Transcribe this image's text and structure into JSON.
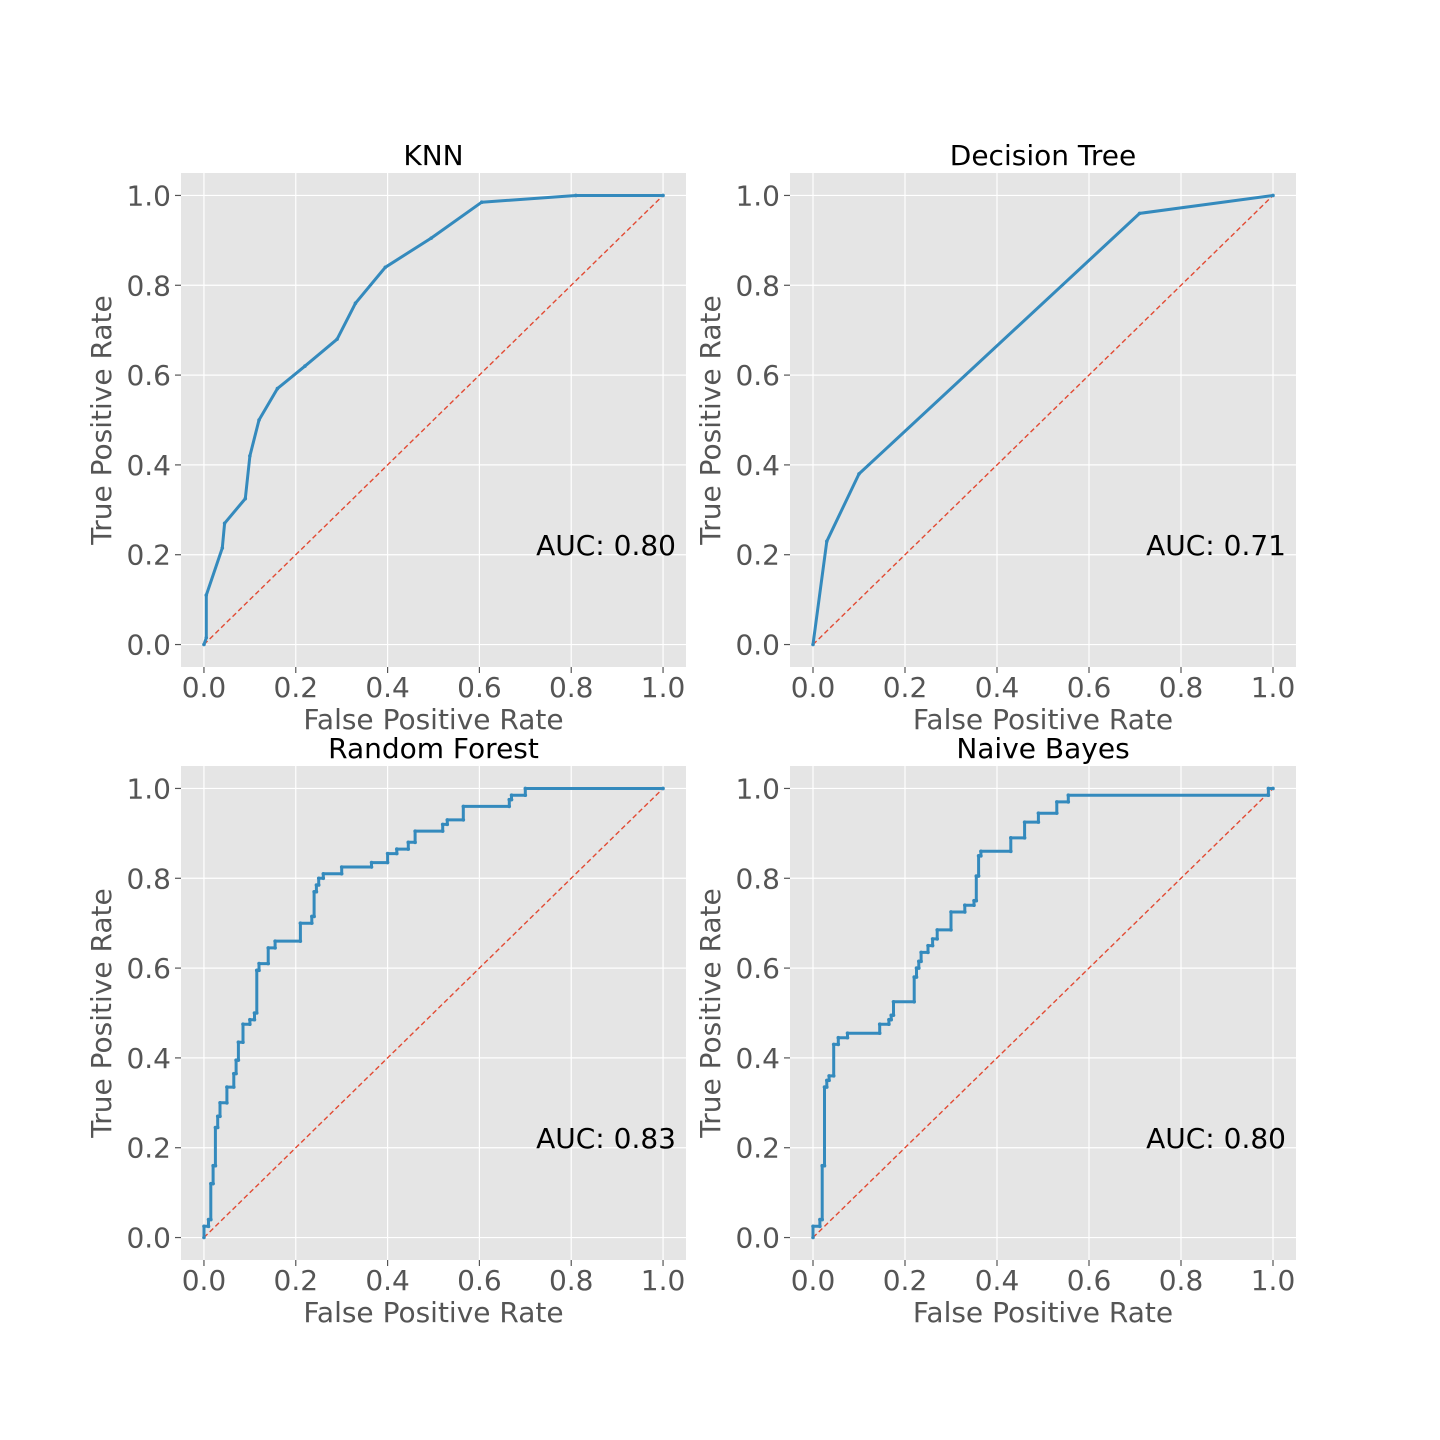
{
  "chart_data": [
    {
      "type": "line",
      "title": "KNN",
      "xlabel": "False Positive Rate",
      "ylabel": "True Positive Rate",
      "xlim": [
        -0.05,
        1.05
      ],
      "ylim": [
        -0.05,
        1.05
      ],
      "xticks": [
        "0.0",
        "0.2",
        "0.4",
        "0.6",
        "0.8",
        "1.0"
      ],
      "yticks": [
        "0.0",
        "0.2",
        "0.4",
        "0.6",
        "0.8",
        "1.0"
      ],
      "grid": true,
      "annotation": "AUC: 0.80",
      "series": [
        {
          "x": [
            0.0,
            0.005,
            0.005,
            0.04,
            0.045,
            0.09,
            0.1,
            0.12,
            0.16,
            0.22,
            0.29,
            0.33,
            0.395,
            0.495,
            0.605,
            0.81,
            1.0
          ],
          "y": [
            0.0,
            0.015,
            0.11,
            0.215,
            0.27,
            0.325,
            0.42,
            0.5,
            0.57,
            0.62,
            0.68,
            0.76,
            0.84,
            0.905,
            0.985,
            1.0,
            1.0
          ]
        },
        {
          "x": [
            0.0,
            1.0
          ],
          "y": [
            0.0,
            1.0
          ]
        }
      ]
    },
    {
      "type": "line",
      "title": "Decision Tree",
      "xlabel": "False Positive Rate",
      "ylabel": "True Positive Rate",
      "xlim": [
        -0.05,
        1.05
      ],
      "ylim": [
        -0.05,
        1.05
      ],
      "xticks": [
        "0.0",
        "0.2",
        "0.4",
        "0.6",
        "0.8",
        "1.0"
      ],
      "yticks": [
        "0.0",
        "0.2",
        "0.4",
        "0.6",
        "0.8",
        "1.0"
      ],
      "grid": true,
      "annotation": "AUC: 0.71",
      "series": [
        {
          "x": [
            0.0,
            0.03,
            0.1,
            0.71,
            1.0
          ],
          "y": [
            0.0,
            0.23,
            0.38,
            0.96,
            1.0
          ]
        },
        {
          "x": [
            0.0,
            1.0
          ],
          "y": [
            0.0,
            1.0
          ]
        }
      ]
    },
    {
      "type": "line",
      "title": "Random Forest",
      "xlabel": "False Positive Rate",
      "ylabel": "True Positive Rate",
      "xlim": [
        -0.05,
        1.05
      ],
      "ylim": [
        -0.05,
        1.05
      ],
      "xticks": [
        "0.0",
        "0.2",
        "0.4",
        "0.6",
        "0.8",
        "1.0"
      ],
      "yticks": [
        "0.0",
        "0.2",
        "0.4",
        "0.6",
        "0.8",
        "1.0"
      ],
      "grid": true,
      "annotation": "AUC: 0.83",
      "series": [
        {
          "x": [
            0.0,
            0.0,
            0.01,
            0.01,
            0.015,
            0.015,
            0.02,
            0.02,
            0.025,
            0.025,
            0.03,
            0.03,
            0.035,
            0.035,
            0.05,
            0.05,
            0.065,
            0.065,
            0.07,
            0.07,
            0.075,
            0.075,
            0.085,
            0.085,
            0.1,
            0.1,
            0.11,
            0.11,
            0.115,
            0.115,
            0.12,
            0.12,
            0.14,
            0.14,
            0.155,
            0.155,
            0.21,
            0.21,
            0.235,
            0.235,
            0.24,
            0.24,
            0.245,
            0.245,
            0.25,
            0.25,
            0.26,
            0.26,
            0.3,
            0.3,
            0.365,
            0.365,
            0.4,
            0.4,
            0.42,
            0.42,
            0.445,
            0.445,
            0.46,
            0.46,
            0.52,
            0.52,
            0.53,
            0.53,
            0.565,
            0.565,
            0.665,
            0.665,
            0.67,
            0.67,
            0.7,
            0.7,
            1.0
          ],
          "y": [
            0.0,
            0.025,
            0.025,
            0.04,
            0.04,
            0.12,
            0.12,
            0.16,
            0.16,
            0.245,
            0.245,
            0.27,
            0.27,
            0.3,
            0.3,
            0.335,
            0.335,
            0.365,
            0.365,
            0.395,
            0.395,
            0.435,
            0.435,
            0.475,
            0.475,
            0.485,
            0.485,
            0.5,
            0.5,
            0.595,
            0.595,
            0.61,
            0.61,
            0.645,
            0.645,
            0.66,
            0.66,
            0.7,
            0.7,
            0.715,
            0.715,
            0.77,
            0.77,
            0.785,
            0.785,
            0.8,
            0.8,
            0.81,
            0.81,
            0.825,
            0.825,
            0.835,
            0.835,
            0.855,
            0.855,
            0.865,
            0.865,
            0.88,
            0.88,
            0.905,
            0.905,
            0.92,
            0.92,
            0.93,
            0.93,
            0.96,
            0.96,
            0.975,
            0.975,
            0.985,
            0.985,
            1.0,
            1.0
          ]
        },
        {
          "x": [
            0.0,
            1.0
          ],
          "y": [
            0.0,
            1.0
          ]
        }
      ]
    },
    {
      "type": "line",
      "title": "Naive Bayes",
      "xlabel": "False Positive Rate",
      "ylabel": "True Positive Rate",
      "xlim": [
        -0.05,
        1.05
      ],
      "ylim": [
        -0.05,
        1.05
      ],
      "xticks": [
        "0.0",
        "0.2",
        "0.4",
        "0.6",
        "0.8",
        "1.0"
      ],
      "yticks": [
        "0.0",
        "0.2",
        "0.4",
        "0.6",
        "0.8",
        "1.0"
      ],
      "grid": true,
      "annotation": "AUC: 0.80",
      "series": [
        {
          "x": [
            0.0,
            0.0,
            0.015,
            0.015,
            0.02,
            0.02,
            0.025,
            0.025,
            0.03,
            0.03,
            0.035,
            0.035,
            0.045,
            0.045,
            0.055,
            0.055,
            0.075,
            0.075,
            0.145,
            0.145,
            0.165,
            0.165,
            0.17,
            0.17,
            0.175,
            0.175,
            0.22,
            0.22,
            0.225,
            0.225,
            0.23,
            0.23,
            0.235,
            0.235,
            0.25,
            0.25,
            0.26,
            0.26,
            0.27,
            0.27,
            0.3,
            0.3,
            0.33,
            0.33,
            0.35,
            0.35,
            0.355,
            0.355,
            0.36,
            0.36,
            0.365,
            0.365,
            0.43,
            0.43,
            0.46,
            0.46,
            0.49,
            0.49,
            0.53,
            0.53,
            0.555,
            0.555,
            0.99,
            0.99,
            1.0
          ],
          "y": [
            0.0,
            0.025,
            0.025,
            0.04,
            0.04,
            0.16,
            0.16,
            0.335,
            0.335,
            0.35,
            0.35,
            0.36,
            0.36,
            0.43,
            0.43,
            0.445,
            0.445,
            0.455,
            0.455,
            0.475,
            0.475,
            0.485,
            0.485,
            0.495,
            0.495,
            0.525,
            0.525,
            0.58,
            0.58,
            0.6,
            0.6,
            0.615,
            0.615,
            0.635,
            0.635,
            0.65,
            0.65,
            0.665,
            0.665,
            0.685,
            0.685,
            0.725,
            0.725,
            0.74,
            0.74,
            0.75,
            0.75,
            0.805,
            0.805,
            0.85,
            0.85,
            0.86,
            0.86,
            0.89,
            0.89,
            0.925,
            0.925,
            0.945,
            0.945,
            0.97,
            0.97,
            0.985,
            0.985,
            1.0,
            1.0
          ]
        },
        {
          "x": [
            0.0,
            1.0
          ],
          "y": [
            0.0,
            1.0
          ]
        }
      ]
    }
  ]
}
